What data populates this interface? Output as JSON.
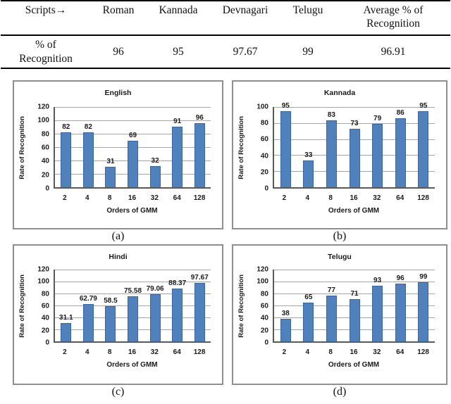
{
  "table": {
    "header_label": "Scripts→",
    "columns": [
      "Roman",
      "Kannada",
      "Devnagari",
      "Telugu",
      "Average % of Recognition"
    ],
    "row_label": "% of Recognition",
    "values": [
      "96",
      "95",
      "97.67",
      "99",
      "96.91"
    ]
  },
  "colors": {
    "bar": "#4f81bd",
    "gridline": "#a6a6a6",
    "axis": "#595959",
    "panel_border": "#8f8f8f"
  },
  "chart_data": [
    {
      "type": "bar",
      "caption": "(a)",
      "title": "English",
      "categories": [
        "2",
        "4",
        "8",
        "16",
        "32",
        "64",
        "128"
      ],
      "values": [
        82,
        82,
        31,
        69,
        32,
        91,
        96
      ],
      "labels": [
        "82",
        "82",
        "31",
        "69",
        "32",
        "91",
        "96"
      ],
      "xlabel": "Orders of GMM",
      "ylabel": "Rate of Recognition",
      "ylim": [
        0,
        120
      ],
      "yticks": [
        0,
        20,
        40,
        60,
        80,
        100,
        120
      ],
      "grid": true,
      "legend": "none",
      "bar_color": "#4f81bd"
    },
    {
      "type": "bar",
      "caption": "(b)",
      "title": "Kannada",
      "categories": [
        "2",
        "4",
        "8",
        "16",
        "32",
        "64",
        "128"
      ],
      "values": [
        95,
        33,
        83,
        73,
        79,
        86,
        95
      ],
      "labels": [
        "95",
        "33",
        "83",
        "73",
        "79",
        "86",
        "95"
      ],
      "xlabel": "Orders of GMM",
      "ylabel": "Rate of Recognition",
      "ylim": [
        0,
        100
      ],
      "yticks": [
        0,
        20,
        40,
        60,
        80,
        100
      ],
      "grid": true,
      "legend": "none",
      "bar_color": "#4f81bd"
    },
    {
      "type": "bar",
      "caption": "(c)",
      "title": "Hindi",
      "categories": [
        "2",
        "4",
        "8",
        "16",
        "32",
        "64",
        "128"
      ],
      "values": [
        31.1,
        62.79,
        58.5,
        75.58,
        79.06,
        88.37,
        97.67
      ],
      "labels": [
        "31.1",
        "62.79",
        "58.5",
        "75.58",
        "79.06",
        "88.37",
        "97.67"
      ],
      "xlabel": "Orders of GMM",
      "ylabel": "Rate of Recognition",
      "ylim": [
        0,
        120
      ],
      "yticks": [
        0,
        20,
        40,
        60,
        80,
        100,
        120
      ],
      "grid": true,
      "legend": "none",
      "bar_color": "#4f81bd"
    },
    {
      "type": "bar",
      "caption": "(d)",
      "title": "Telugu",
      "categories": [
        "2",
        "4",
        "8",
        "16",
        "32",
        "64",
        "128"
      ],
      "values": [
        38,
        65,
        77,
        71,
        93,
        96,
        99
      ],
      "labels": [
        "38",
        "65",
        "77",
        "71",
        "93",
        "96",
        "99"
      ],
      "xlabel": "Orders of GMM",
      "ylabel": "Rate of Recognition",
      "ylim": [
        0,
        120
      ],
      "yticks": [
        0,
        20,
        40,
        60,
        80,
        100,
        120
      ],
      "grid": true,
      "legend": "none",
      "bar_color": "#4f81bd"
    }
  ]
}
